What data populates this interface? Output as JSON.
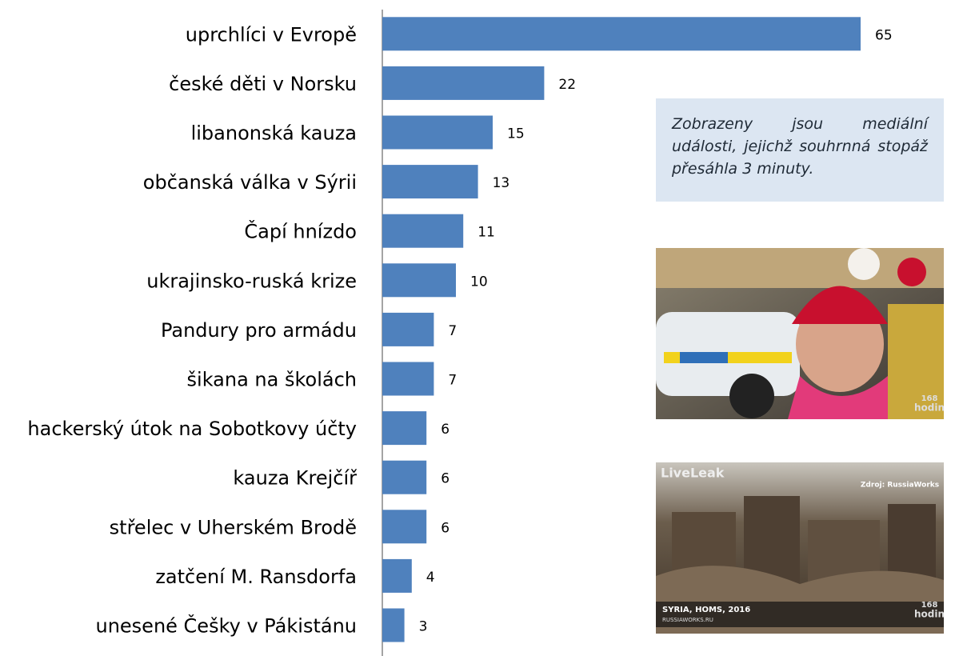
{
  "chart_data": {
    "type": "bar",
    "orientation": "horizontal",
    "color": "#4f81bd",
    "categories": [
      "uprchlíci v Evropě",
      "české děti v Norsku",
      "libanonská kauza",
      "občanská válka v Sýrii",
      "Čapí hnízdo",
      "ukrajinsko-ruská krize",
      "Pandury pro armádu",
      "šikana na školách",
      "hackerský útok na Sobotkovy účty",
      "kauza Krejčíř",
      "střelec v Uherském Brodě",
      "zatčení M. Ransdorfa",
      "unesené Češky v Pákistánu"
    ],
    "values": [
      65,
      22,
      15,
      13,
      11,
      10,
      7,
      7,
      6,
      6,
      6,
      4,
      3
    ]
  },
  "note": "Zobrazeny jsou mediální události, jejichž souhrnná stopáž přesáhla 3 minuty.",
  "photos": [
    {
      "texts": [
        "168",
        "hodin"
      ]
    },
    {
      "texts": [
        "LiveLeak",
        "Zdroj: RussiaWorks",
        "SYRIA, HOMS, 2016",
        "RUSSIAWORKS.RU",
        "168",
        "hodin"
      ]
    }
  ]
}
